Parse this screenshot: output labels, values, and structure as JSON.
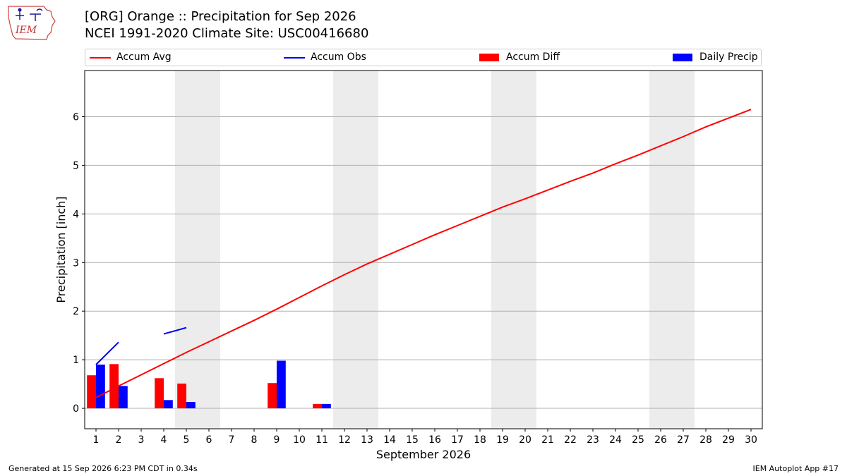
{
  "header": {
    "logo_text": "IEM",
    "title_line1": "[ORG] Orange :: Precipitation for Sep 2026",
    "title_line2": "NCEI 1991-2020 Climate Site: USC00416680"
  },
  "legend": {
    "items": [
      {
        "label": "Accum Avg",
        "kind": "line",
        "color": "#ff0000"
      },
      {
        "label": "Accum Obs",
        "kind": "line",
        "color": "#0000ff"
      },
      {
        "label": "Accum Diff",
        "kind": "bar",
        "color": "#ff0000"
      },
      {
        "label": "Daily Precip",
        "kind": "bar",
        "color": "#0000ff"
      }
    ]
  },
  "chart_data": {
    "type": "bar",
    "xlabel": "September 2026",
    "ylabel": "Precipitation [inch]",
    "x": [
      1,
      2,
      3,
      4,
      5,
      6,
      7,
      8,
      9,
      10,
      11,
      12,
      13,
      14,
      15,
      16,
      17,
      18,
      19,
      20,
      21,
      22,
      23,
      24,
      25,
      26,
      27,
      28,
      29,
      30
    ],
    "ylim": [
      -0.42,
      6.95
    ],
    "yticks": [
      0,
      1,
      2,
      3,
      4,
      5,
      6
    ],
    "grid": "horizontal",
    "weekend_shading": [
      [
        5,
        6
      ],
      [
        12,
        13
      ],
      [
        19,
        20
      ],
      [
        26,
        27
      ]
    ],
    "series": [
      {
        "name": "Accum Avg",
        "type": "line",
        "color": "#ff0000",
        "values": [
          0.22,
          0.46,
          0.69,
          0.92,
          1.15,
          1.37,
          1.59,
          1.81,
          2.04,
          2.28,
          2.52,
          2.75,
          2.97,
          3.17,
          3.37,
          3.57,
          3.76,
          3.95,
          4.14,
          4.31,
          4.49,
          4.67,
          4.84,
          5.03,
          5.21,
          5.4,
          5.59,
          5.79,
          5.97,
          6.15
        ]
      },
      {
        "name": "Accum Obs",
        "type": "line",
        "color": "#0000ff",
        "segments": [
          [
            [
              1,
              0.9
            ],
            [
              2,
              1.36
            ]
          ],
          [
            [
              4,
              1.53
            ],
            [
              5,
              1.66
            ]
          ]
        ]
      },
      {
        "name": "Accum Diff",
        "type": "bar",
        "color": "#ff0000",
        "values": {
          "1": 0.68,
          "2": 0.91,
          "4": 0.62,
          "5": 0.51,
          "9": 0.52,
          "11": 0.09
        }
      },
      {
        "name": "Daily Precip",
        "type": "bar",
        "color": "#0000ff",
        "values": {
          "1": 0.9,
          "2": 0.46,
          "4": 0.17,
          "5": 0.13,
          "9": 0.98,
          "11": 0.09
        }
      }
    ]
  },
  "footer": {
    "left": "Generated at 15 Sep 2026 6:23 PM CDT in 0.34s",
    "right": "IEM Autoplot App #17"
  }
}
